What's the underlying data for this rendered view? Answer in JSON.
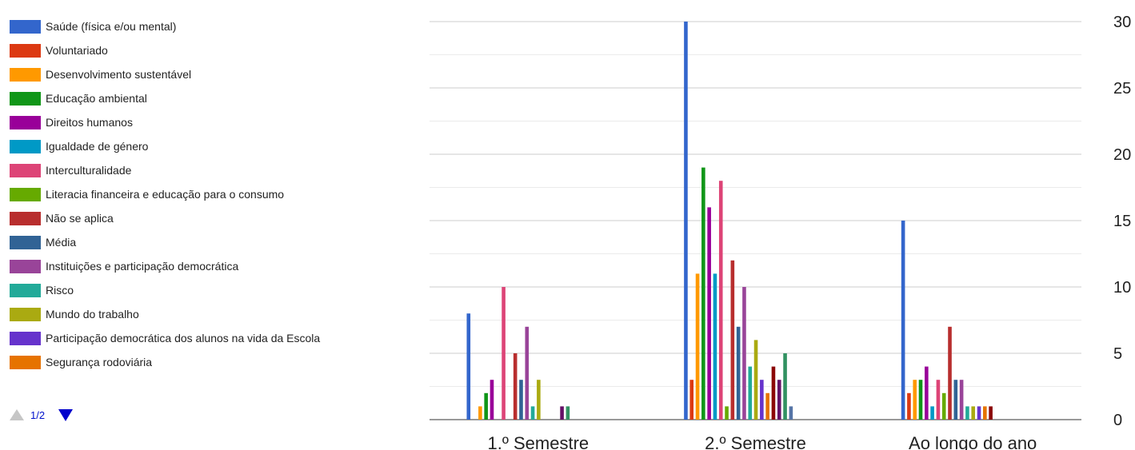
{
  "legend": {
    "items": [
      {
        "label": "Saúde (física e/ou mental)",
        "color": "#3366cc"
      },
      {
        "label": "Voluntariado",
        "color": "#dc3912"
      },
      {
        "label": "Desenvolvimento sustentável",
        "color": "#ff9900"
      },
      {
        "label": "Educação ambiental",
        "color": "#109618"
      },
      {
        "label": "Direitos humanos",
        "color": "#990099"
      },
      {
        "label": "Igualdade de género",
        "color": "#0099c6"
      },
      {
        "label": "Interculturalidade",
        "color": "#dd4477"
      },
      {
        "label": "Literacia financeira e educação para o consumo",
        "color": "#66aa00"
      },
      {
        "label": "Não se aplica",
        "color": "#b82e2e"
      },
      {
        "label": "Média",
        "color": "#316395"
      },
      {
        "label": "Instituições e participação democrática",
        "color": "#994499"
      },
      {
        "label": "Risco",
        "color": "#22aa99"
      },
      {
        "label": "Mundo do trabalho",
        "color": "#aaaa11"
      },
      {
        "label": "Participação democrática dos alunos na vida da Escola",
        "color": "#6633cc"
      },
      {
        "label": "Segurança rodoviária",
        "color": "#e67300"
      }
    ]
  },
  "pager": {
    "text": "1/2"
  },
  "chart_data": {
    "type": "bar",
    "categories": [
      "1.º Semestre",
      "2.º Semestre",
      "Ao longo do ano"
    ],
    "ylim": [
      0,
      30
    ],
    "yticks": [
      0,
      5,
      10,
      15,
      20,
      25,
      30
    ],
    "y_axis_position": "right",
    "grid": true,
    "legend_position": "left",
    "series_colors": [
      "#3366cc",
      "#dc3912",
      "#ff9900",
      "#109618",
      "#990099",
      "#0099c6",
      "#dd4477",
      "#66aa00",
      "#b82e2e",
      "#316395",
      "#994499",
      "#22aa99",
      "#aaaa11",
      "#6633cc",
      "#e67300",
      "#8b0707",
      "#651067",
      "#329262",
      "#5574a6",
      "#3b3eac"
    ],
    "series_values": [
      [
        8,
        30,
        15
      ],
      [
        0,
        3,
        2
      ],
      [
        1,
        11,
        3
      ],
      [
        2,
        19,
        3
      ],
      [
        3,
        16,
        4
      ],
      [
        0,
        11,
        1
      ],
      [
        10,
        18,
        3
      ],
      [
        0,
        1,
        2
      ],
      [
        5,
        12,
        7
      ],
      [
        3,
        7,
        3
      ],
      [
        7,
        10,
        3
      ],
      [
        1,
        4,
        1
      ],
      [
        3,
        6,
        1
      ],
      [
        0,
        3,
        1
      ],
      [
        0,
        2,
        1
      ],
      [
        0,
        4,
        1
      ],
      [
        1,
        3,
        0
      ],
      [
        1,
        5,
        0
      ],
      [
        0,
        1,
        0
      ],
      [
        0,
        0,
        0
      ]
    ]
  }
}
